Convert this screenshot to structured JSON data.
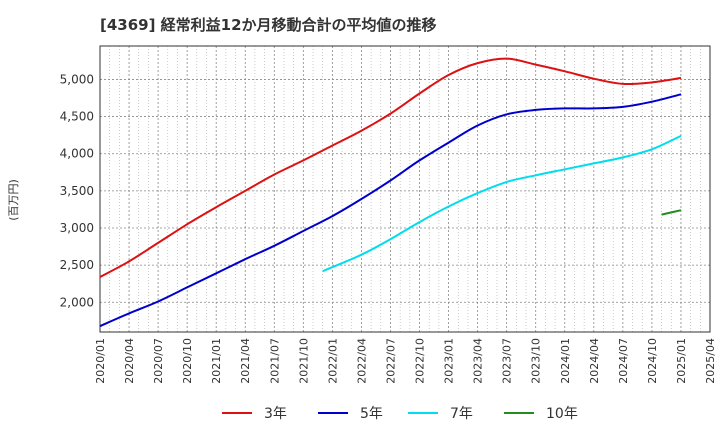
{
  "chart_data": {
    "type": "line",
    "title": "[4369]  経常利益12か月移動合計の平均値の推移",
    "ylabel": "(百万円)",
    "xlabel": "",
    "ylim": [
      1600,
      5450
    ],
    "yticks": [
      2000,
      2500,
      3000,
      3500,
      4000,
      4500,
      5000
    ],
    "ytick_labels": [
      "2,000",
      "2,500",
      "3,000",
      "3,500",
      "4,000",
      "4,500",
      "5,000"
    ],
    "x_start": "2020/01",
    "x_end": "2025/04",
    "xticks": [
      "2020/01",
      "2020/04",
      "2020/07",
      "2020/10",
      "2021/01",
      "2021/04",
      "2021/07",
      "2021/10",
      "2022/01",
      "2022/04",
      "2022/07",
      "2022/10",
      "2023/01",
      "2023/04",
      "2023/07",
      "2023/10",
      "2024/01",
      "2024/04",
      "2024/07",
      "2024/10",
      "2025/01",
      "2025/04"
    ],
    "grid": true,
    "legend_position": "bottom",
    "series": [
      {
        "name": "3年",
        "color": "#dd1111",
        "points": [
          [
            "2020/01",
            2340
          ],
          [
            "2020/04",
            2550
          ],
          [
            "2020/07",
            2800
          ],
          [
            "2020/10",
            3050
          ],
          [
            "2021/01",
            3280
          ],
          [
            "2021/04",
            3500
          ],
          [
            "2021/07",
            3720
          ],
          [
            "2021/10",
            3910
          ],
          [
            "2022/01",
            4110
          ],
          [
            "2022/04",
            4310
          ],
          [
            "2022/07",
            4540
          ],
          [
            "2022/10",
            4810
          ],
          [
            "2023/01",
            5060
          ],
          [
            "2023/04",
            5220
          ],
          [
            "2023/07",
            5280
          ],
          [
            "2023/10",
            5200
          ],
          [
            "2024/01",
            5110
          ],
          [
            "2024/04",
            5010
          ],
          [
            "2024/07",
            4940
          ],
          [
            "2024/10",
            4960
          ],
          [
            "2025/01",
            5020
          ]
        ]
      },
      {
        "name": "5年",
        "color": "#0000cc",
        "points": [
          [
            "2020/01",
            1680
          ],
          [
            "2020/04",
            1850
          ],
          [
            "2020/07",
            2010
          ],
          [
            "2020/10",
            2200
          ],
          [
            "2021/01",
            2390
          ],
          [
            "2021/04",
            2580
          ],
          [
            "2021/07",
            2760
          ],
          [
            "2021/10",
            2960
          ],
          [
            "2022/01",
            3160
          ],
          [
            "2022/04",
            3390
          ],
          [
            "2022/07",
            3640
          ],
          [
            "2022/10",
            3910
          ],
          [
            "2023/01",
            4150
          ],
          [
            "2023/04",
            4380
          ],
          [
            "2023/07",
            4530
          ],
          [
            "2023/10",
            4590
          ],
          [
            "2024/01",
            4610
          ],
          [
            "2024/04",
            4610
          ],
          [
            "2024/07",
            4630
          ],
          [
            "2024/10",
            4700
          ],
          [
            "2025/01",
            4800
          ]
        ]
      },
      {
        "name": "7年",
        "color": "#00ddee",
        "points": [
          [
            "2021/12",
            2420
          ],
          [
            "2022/04",
            2640
          ],
          [
            "2022/07",
            2850
          ],
          [
            "2022/10",
            3080
          ],
          [
            "2023/01",
            3290
          ],
          [
            "2023/04",
            3470
          ],
          [
            "2023/07",
            3620
          ],
          [
            "2023/10",
            3710
          ],
          [
            "2024/01",
            3790
          ],
          [
            "2024/04",
            3870
          ],
          [
            "2024/07",
            3950
          ],
          [
            "2024/10",
            4060
          ],
          [
            "2025/01",
            4240
          ]
        ]
      },
      {
        "name": "10年",
        "color": "#228b22",
        "points": [
          [
            "2024/11",
            3180
          ],
          [
            "2025/01",
            3240
          ]
        ]
      }
    ]
  }
}
